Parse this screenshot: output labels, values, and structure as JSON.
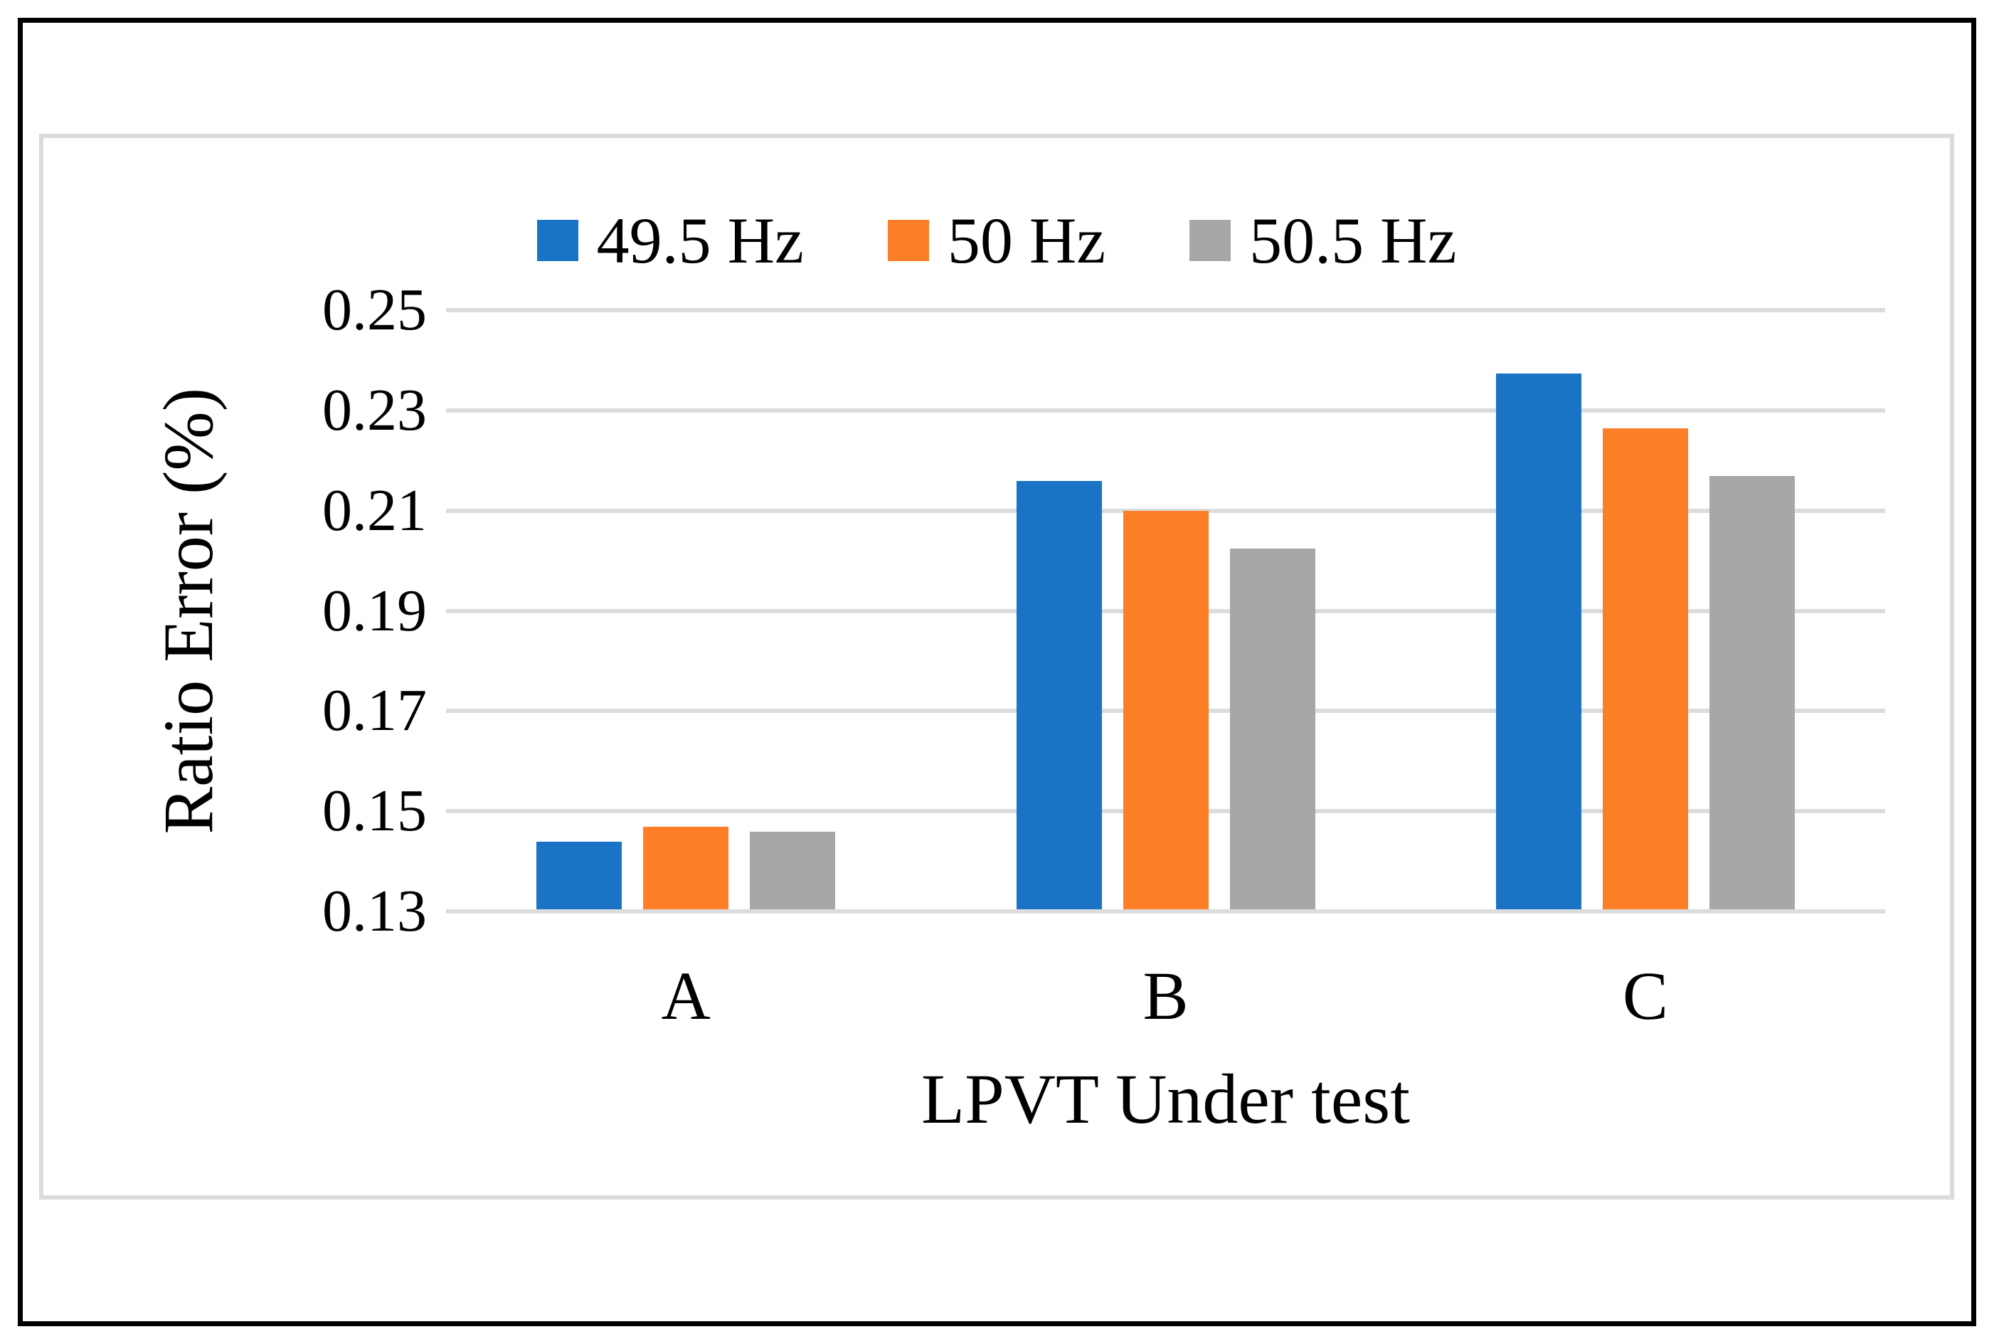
{
  "chart_data": {
    "type": "bar",
    "title": "",
    "categories": [
      "A",
      "B",
      "C"
    ],
    "series": [
      {
        "name": "49.5 Hz",
        "color": "#1B73C6",
        "values": [
          0.1435,
          0.2155,
          0.237
        ]
      },
      {
        "name": "50 Hz",
        "color": "#FC7E27",
        "values": [
          0.1465,
          0.2095,
          0.226
        ]
      },
      {
        "name": "50.5 Hz",
        "color": "#A7A7A7",
        "values": [
          0.1455,
          0.202,
          0.2165
        ]
      }
    ],
    "xlabel": "LPVT Under test",
    "ylabel": "Ratio Error (%)",
    "ylim": [
      0.13,
      0.25
    ],
    "ytick_step": 0.02,
    "ytick_labels": [
      "0.25",
      "0.23",
      "0.21",
      "0.19",
      "0.17",
      "0.15",
      "0.13"
    ],
    "grid": true,
    "legend_position": "top",
    "gridline_color": "#DCDCDC",
    "panel_border_color": "#DBDBDB",
    "outer_border_color": "#000000"
  }
}
